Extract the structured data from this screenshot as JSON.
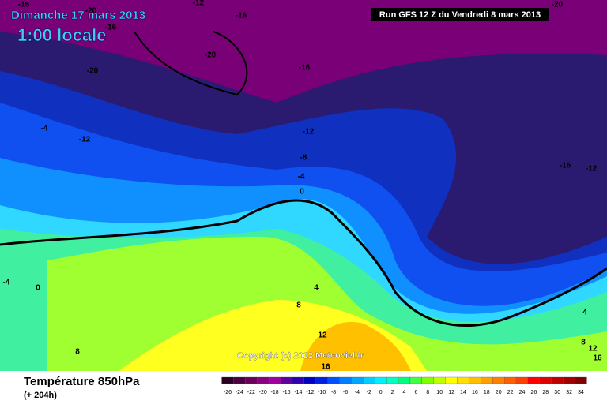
{
  "header": {
    "title": "Dimanche 17 mars 2013",
    "time": "1:00 locale",
    "run": "Run GFS 12 Z du Vendredi 8 mars 2013"
  },
  "copyright": "Copyright (c) 2012 Meteociel.fr",
  "footer": {
    "title": "Température 850hPa",
    "lead": "(+ 204h)"
  },
  "contour_labels": [
    -16,
    -20,
    -12,
    -16,
    -16,
    -20,
    -20,
    -16,
    -20,
    -4,
    -12,
    -12,
    -8,
    -4,
    0,
    -16,
    -12,
    -4,
    0,
    4,
    8,
    12,
    16,
    8,
    4,
    8,
    12,
    16
  ],
  "legend": {
    "values": [
      -26,
      -24,
      -22,
      -20,
      -18,
      -16,
      -14,
      -12,
      -10,
      -8,
      -6,
      -4,
      -2,
      0,
      2,
      4,
      6,
      8,
      10,
      12,
      14,
      16,
      18,
      20,
      22,
      24,
      26,
      28,
      30,
      32,
      34
    ],
    "colors": [
      "#2b0020",
      "#4b0040",
      "#6b005a",
      "#8b0080",
      "#a000a0",
      "#6000a0",
      "#3000b0",
      "#0000c0",
      "#0020e0",
      "#0050ff",
      "#0080ff",
      "#00a8ff",
      "#00d0ff",
      "#00f0ff",
      "#00ffc0",
      "#00ff80",
      "#40ff40",
      "#80ff00",
      "#c0ff00",
      "#ffff00",
      "#ffe000",
      "#ffc000",
      "#ffa000",
      "#ff8000",
      "#ff6000",
      "#ff4000",
      "#ff0000",
      "#e00000",
      "#c00000",
      "#a00000",
      "#800000"
    ]
  }
}
